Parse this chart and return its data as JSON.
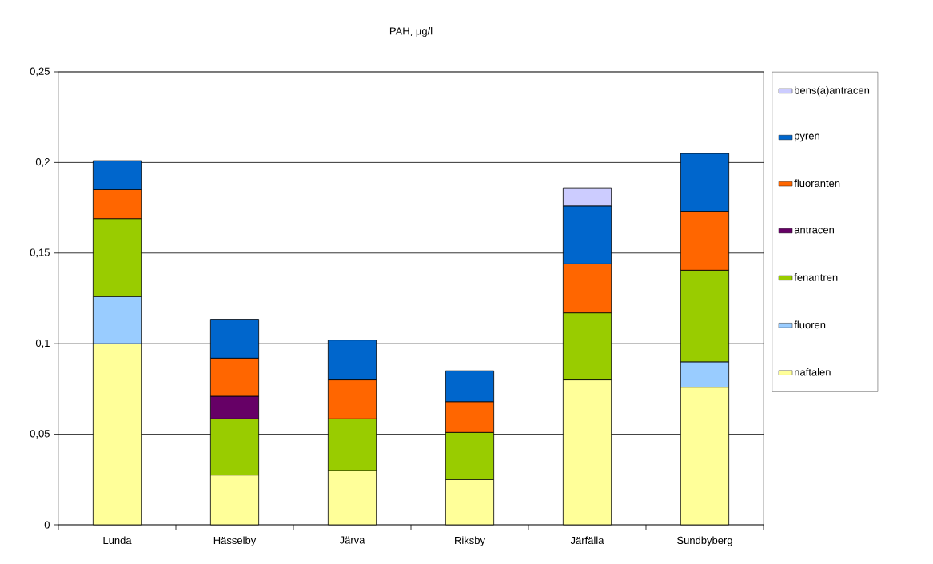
{
  "chart_data": {
    "type": "bar",
    "title": "PAH, µg/l",
    "stacked": true,
    "legend": "right",
    "grid": "y",
    "categories": [
      "Lunda",
      "Hässelby",
      "Järva",
      "Riksby",
      "Järfälla",
      "Sundbyberg"
    ],
    "ylim": [
      0,
      0.25
    ],
    "yticks": [
      {
        "value": 0,
        "label": "0"
      },
      {
        "value": 0.05,
        "label": "0,05"
      },
      {
        "value": 0.1,
        "label": "0,1"
      },
      {
        "value": 0.15,
        "label": "0,15"
      },
      {
        "value": 0.2,
        "label": "0,2"
      },
      {
        "value": 0.25,
        "label": "0,25"
      }
    ],
    "series": [
      {
        "name": "naftalen",
        "color": "#ffff99",
        "values": [
          0.1,
          0.0275,
          0.03,
          0.025,
          0.08,
          0.076
        ]
      },
      {
        "name": "fluoren",
        "color": "#99ccff",
        "values": [
          0.026,
          null,
          null,
          null,
          null,
          0.014
        ]
      },
      {
        "name": "fenantren",
        "color": "#99cc00",
        "values": [
          0.043,
          0.031,
          0.0285,
          0.026,
          0.037,
          0.0505
        ]
      },
      {
        "name": "antracen",
        "color": "#660066",
        "values": [
          null,
          0.0125,
          null,
          null,
          null,
          null
        ]
      },
      {
        "name": "fluoranten",
        "color": "#ff6600",
        "values": [
          0.016,
          0.021,
          0.0215,
          0.017,
          0.027,
          0.0325
        ]
      },
      {
        "name": "pyren",
        "color": "#0066cc",
        "values": [
          0.016,
          0.0215,
          0.022,
          0.017,
          0.032,
          0.032
        ]
      },
      {
        "name": "bens(a)antracen",
        "color": "#ccccff",
        "values": [
          null,
          null,
          null,
          null,
          0.01,
          null
        ]
      }
    ]
  }
}
